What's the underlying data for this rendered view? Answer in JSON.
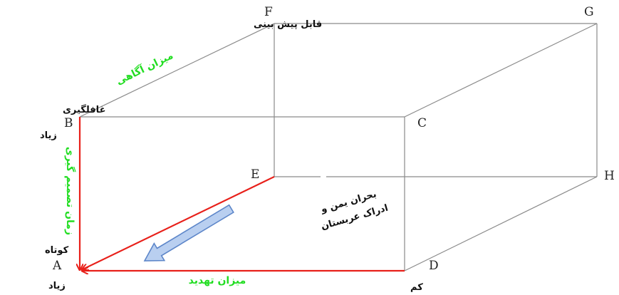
{
  "colors": {
    "edge": "#8a8a8a",
    "red": "#e8201a",
    "green": "#22dd22",
    "text": "#111111",
    "arrow_fill": "#b9cff0",
    "arrow_stroke": "#5d86c9"
  },
  "vertices": {
    "A": "A",
    "B": "B",
    "C": "C",
    "D": "D",
    "E": "E",
    "F": "F",
    "G": "G",
    "H": "H"
  },
  "labels": {
    "top_left": "قابل پیش بینی",
    "awareness": "میزان آگاهی",
    "surprise": "غافلگیری",
    "much_top": "زیاد",
    "decision_time": "زمان تصمیم گیری",
    "short": "کوتاه",
    "much_bottom": "زیاد",
    "threat_level": "میزان تهدید",
    "low": "کم",
    "crisis_line1": "بحران یمن و",
    "crisis_line2": "ادراک عربستان"
  }
}
